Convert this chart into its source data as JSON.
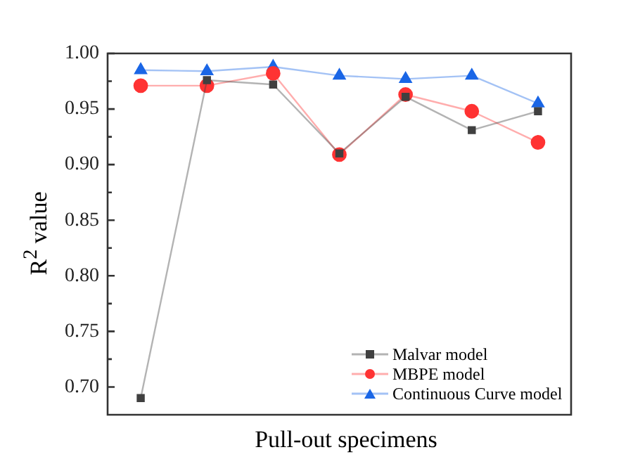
{
  "chart_data": {
    "type": "line",
    "xlabel": "Pull-out specimens",
    "ylabel": "R$^{2}$ value",
    "categories": [
      null,
      null,
      null,
      null,
      null,
      null,
      null
    ],
    "series": [
      {
        "name": "Malvar model",
        "color": "#404040",
        "marker": "square",
        "values": [
          0.69,
          0.976,
          0.972,
          0.91,
          0.961,
          0.931,
          0.948
        ]
      },
      {
        "name": "MBPE model",
        "color": "#ff3333",
        "marker": "circle",
        "values": [
          0.971,
          0.971,
          0.982,
          0.909,
          0.963,
          0.948,
          0.92
        ]
      },
      {
        "name": "Continuous Curve model",
        "color": "#1a66e6",
        "marker": "triangle",
        "values": [
          0.985,
          0.984,
          0.988,
          0.98,
          0.977,
          0.98,
          0.955
        ]
      }
    ],
    "ylim": [
      0.675,
      1.0
    ],
    "yticks": [
      {
        "value": 0.7,
        "label": "0.70"
      },
      {
        "value": 0.75,
        "label": "0.75"
      },
      {
        "value": 0.8,
        "label": "0.80"
      },
      {
        "value": 0.85,
        "label": "0.85"
      },
      {
        "value": 0.9,
        "label": "0.90"
      },
      {
        "value": 0.95,
        "label": "0.95"
      },
      {
        "value": 1.0,
        "label": "1.00"
      }
    ],
    "grid": false,
    "legend": "bottom right",
    "tick_labels": "y"
  }
}
